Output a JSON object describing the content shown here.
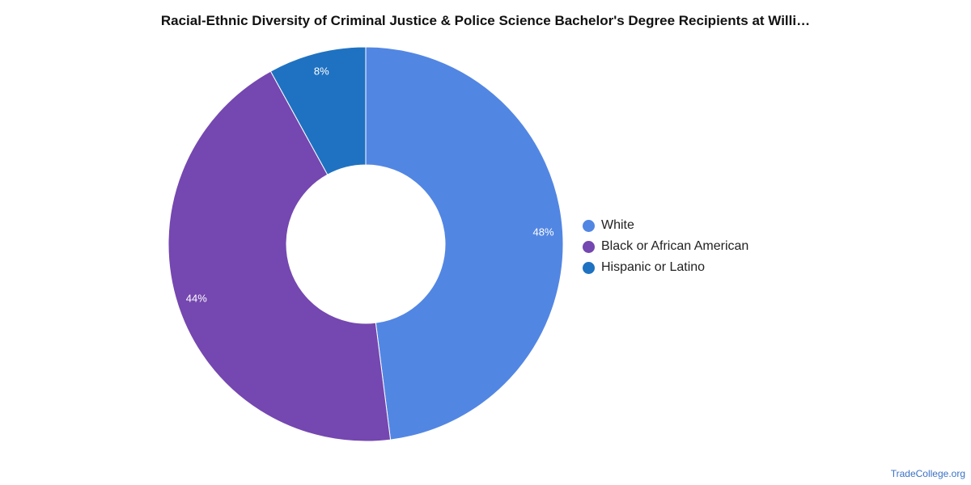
{
  "title": "Racial-Ethnic Diversity of Criminal Justice & Police Science Bachelor's Degree Recipients at Willi…",
  "watermark": "TradeCollege.org",
  "chart_data": {
    "type": "pie",
    "donut": true,
    "legend_position": "right",
    "categories": [
      "White",
      "Black or African American",
      "Hispanic or Latino"
    ],
    "values": [
      48,
      44,
      8
    ],
    "labels": [
      "48%",
      "44%",
      "8%"
    ],
    "colors": [
      "#5286e3",
      "#7547b0",
      "#1f72c1"
    ]
  }
}
